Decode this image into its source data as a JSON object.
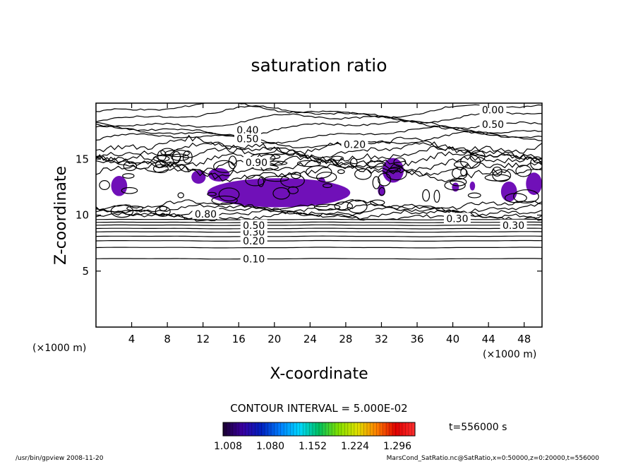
{
  "chart_data": {
    "type": "contour",
    "title": "saturation ratio",
    "xlabel": "X-coordinate",
    "ylabel": "Z-coordinate",
    "x_unit": "(×1000 m)",
    "y_unit": "(×1000 m)",
    "xlim": [
      0,
      50
    ],
    "ylim": [
      0,
      20
    ],
    "x_ticks": [
      4,
      8,
      12,
      16,
      20,
      24,
      28,
      32,
      36,
      40,
      44,
      48
    ],
    "y_ticks": [
      5,
      10,
      15
    ],
    "contour_interval_text": "CONTOUR INTERVAL = 5.000E-02",
    "time_text": "t=556000 s",
    "colorbar": {
      "ticks": [
        "1.008",
        "1.080",
        "1.152",
        "1.224",
        "1.296"
      ],
      "colors": [
        "#1a0030",
        "#3a00a0",
        "#0020c0",
        "#0080ff",
        "#00d8ff",
        "#00c060",
        "#80e000",
        "#e0e000",
        "#ff8000",
        "#e00000",
        "#ff3030"
      ]
    },
    "contour_labels": [
      {
        "text": "0.10",
        "x": 17.7,
        "z": 6.1
      },
      {
        "text": "0.20",
        "x": 17.7,
        "z": 7.7
      },
      {
        "text": "0.30",
        "x": 17.7,
        "z": 8.5
      },
      {
        "text": "0.50",
        "x": 17.7,
        "z": 9.1
      },
      {
        "text": "0.80",
        "x": 12.3,
        "z": 10.1
      },
      {
        "text": "0.40",
        "x": 17.0,
        "z": 17.6
      },
      {
        "text": "0.50",
        "x": 17.0,
        "z": 16.8
      },
      {
        "text": "0.90",
        "x": 18.0,
        "z": 14.7
      },
      {
        "text": "0.20",
        "x": 29.0,
        "z": 16.3
      },
      {
        "text": "0.00",
        "x": 44.5,
        "z": 19.4
      },
      {
        "text": "0.50",
        "x": 44.5,
        "z": 18.1
      },
      {
        "text": "0.30",
        "x": 40.5,
        "z": 9.7
      },
      {
        "text": "0.30",
        "x": 46.8,
        "z": 9.1
      }
    ],
    "supersaturated_regions_note": "purple fill where ratio ≥ 1.008"
  },
  "footer": {
    "left": "/usr/bin/gpview  2008-11-20",
    "right": "MarsCond_SatRatio.nc@SatRatio,x=0:50000,z=0:20000,t=556000"
  }
}
